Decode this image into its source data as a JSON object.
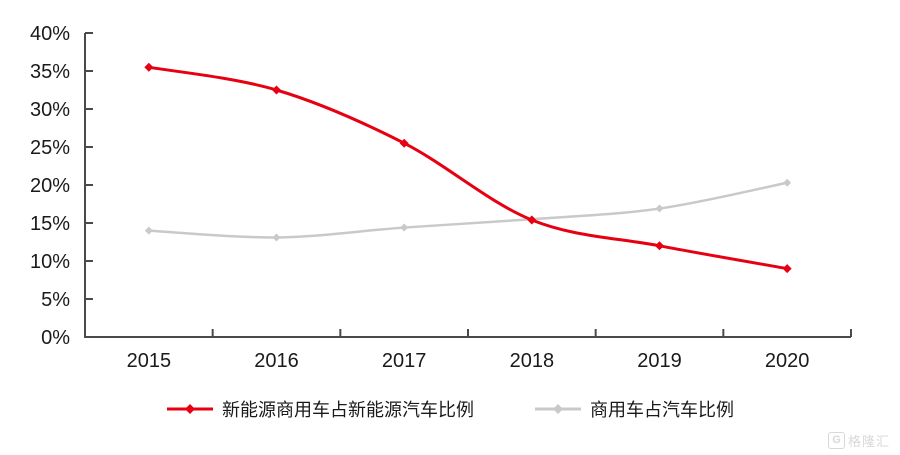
{
  "chart_data": {
    "type": "line",
    "title": "",
    "categories": [
      "2015",
      "2016",
      "2017",
      "2018",
      "2019",
      "2020"
    ],
    "series": [
      {
        "name": "新能源商用车占新能源汽车比例",
        "color": "#e60012",
        "marker": "diamond",
        "line_width": 3,
        "values": [
          35.5,
          32.5,
          25.5,
          15.4,
          12.0,
          9.0
        ]
      },
      {
        "name": "商用车占汽车比例",
        "color": "#c9c9c9",
        "marker": "diamond",
        "line_width": 2.5,
        "values": [
          14.0,
          13.1,
          14.4,
          15.5,
          16.9,
          20.3
        ]
      }
    ],
    "xlabel": "",
    "ylabel": "",
    "ylim": [
      0,
      40
    ],
    "ytick_step": 5,
    "ytick_labels": [
      "0%",
      "5%",
      "10%",
      "15%",
      "20%",
      "25%",
      "30%",
      "35%",
      "40%"
    ],
    "grid": false,
    "legend_position": "bottom",
    "axis_color": "#4a4a4a",
    "label_color": "#1a1a1a"
  },
  "watermark": {
    "logo": "G",
    "text": "格隆汇",
    "color": "#d8d8d8"
  }
}
